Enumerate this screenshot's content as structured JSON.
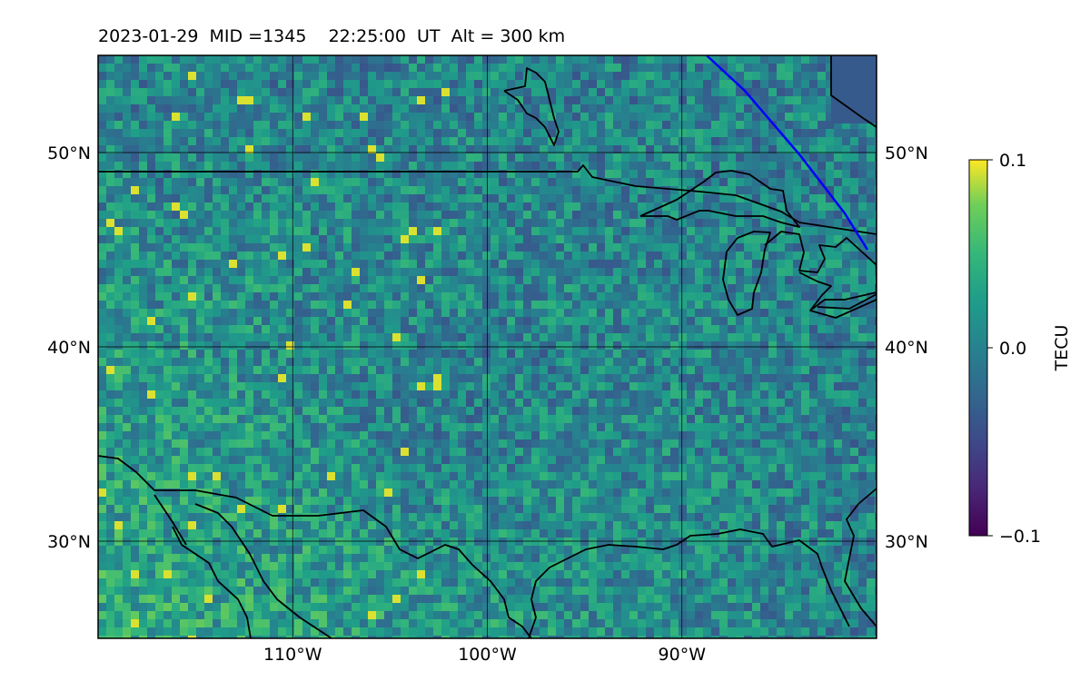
{
  "chart_data": {
    "type": "heatmap",
    "title": "2023-01-29  MID =1345    22:25:00  UT  Alt = 300 km",
    "field": "TEC perturbation map over North America",
    "x_ticks": [
      {
        "lon": -110,
        "label": "110°W"
      },
      {
        "lon": -100,
        "label": "100°W"
      },
      {
        "lon": -90,
        "label": "90°W"
      }
    ],
    "y_ticks_left": [
      {
        "lat": 50,
        "label": "50°N"
      },
      {
        "lat": 40,
        "label": "40°N"
      },
      {
        "lat": 30,
        "label": "30°N"
      }
    ],
    "y_ticks_right": [
      {
        "lat": 50,
        "label": "50°N"
      },
      {
        "lat": 40,
        "label": "40°N"
      },
      {
        "lat": 30,
        "label": "30°N"
      }
    ],
    "lon_range": [
      -120,
      -80
    ],
    "lat_range": [
      25,
      55
    ],
    "grid": true,
    "colorbar": {
      "label": "TECU",
      "min": -0.1,
      "max": 0.1,
      "colormap": "viridis",
      "ticks": [
        {
          "value": 0.1,
          "label": "0.1"
        },
        {
          "value": 0.0,
          "label": "0.0"
        },
        {
          "value": -0.1,
          "label": "−0.1"
        }
      ],
      "position": "right"
    },
    "colors": {
      "background_mean": "#2c8a8c",
      "coastline": "#000000",
      "overlay_line": "#0000ff"
    }
  }
}
